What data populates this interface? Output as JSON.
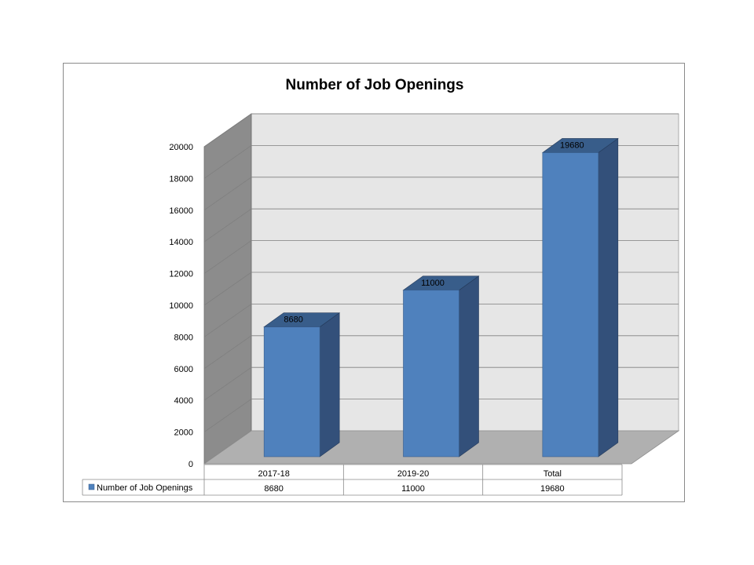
{
  "chart_data": {
    "type": "bar",
    "title": "Number of Job Openings",
    "categories": [
      "2017-18",
      "2019-20",
      "Total"
    ],
    "series": [
      {
        "name": "Number of Job Openings",
        "values": [
          8680,
          11000,
          19680
        ]
      }
    ],
    "ylim": [
      0,
      20000
    ],
    "yticks": [
      0,
      2000,
      4000,
      6000,
      8000,
      10000,
      12000,
      14000,
      16000,
      18000,
      20000
    ],
    "xlabel": "",
    "ylabel": "",
    "grid": true,
    "style": "3d",
    "data_table": true,
    "colors": {
      "bar_front": "#4f81bd",
      "bar_side": "#33507a",
      "bar_top": "#385d8a",
      "back_wall": "#e6e6e6",
      "side_wall": "#8c8c8c",
      "floor": "#b0b0b0",
      "gridline": "#7f7f7f"
    }
  }
}
